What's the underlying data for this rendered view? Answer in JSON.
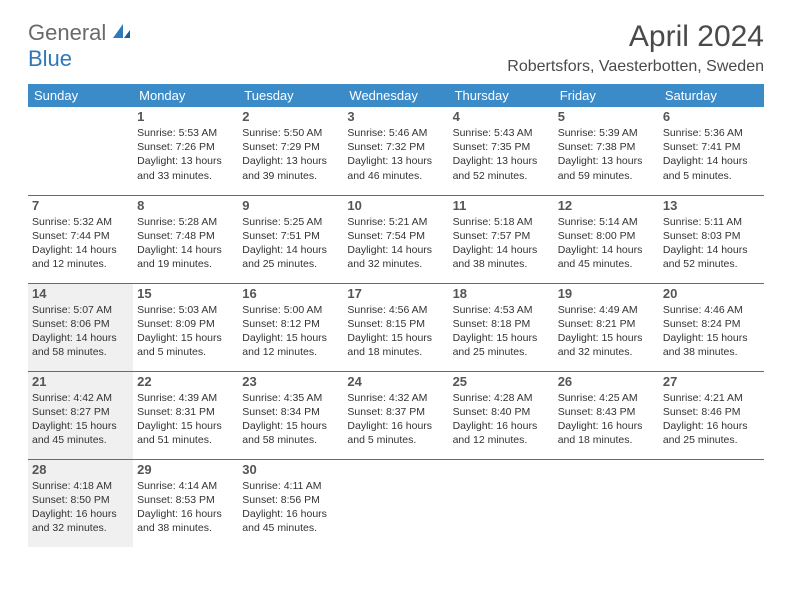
{
  "logo": {
    "gen": "General",
    "blue": "Blue"
  },
  "title": "April 2024",
  "location": "Robertsfors, Vaesterbotten, Sweden",
  "colors": {
    "header_bg": "#3b8bc8",
    "header_fg": "#ffffff",
    "border": "#2f78bd",
    "shade": "#f0f0f0",
    "logo_blue": "#2f78bd",
    "logo_gray": "#6a6a6a"
  },
  "weekdays": [
    "Sunday",
    "Monday",
    "Tuesday",
    "Wednesday",
    "Thursday",
    "Friday",
    "Saturday"
  ],
  "weeks": [
    [
      {
        "day": "",
        "sunrise": "",
        "sunset": "",
        "daylight": ""
      },
      {
        "day": "1",
        "sunrise": "Sunrise: 5:53 AM",
        "sunset": "Sunset: 7:26 PM",
        "daylight": "Daylight: 13 hours and 33 minutes."
      },
      {
        "day": "2",
        "sunrise": "Sunrise: 5:50 AM",
        "sunset": "Sunset: 7:29 PM",
        "daylight": "Daylight: 13 hours and 39 minutes."
      },
      {
        "day": "3",
        "sunrise": "Sunrise: 5:46 AM",
        "sunset": "Sunset: 7:32 PM",
        "daylight": "Daylight: 13 hours and 46 minutes."
      },
      {
        "day": "4",
        "sunrise": "Sunrise: 5:43 AM",
        "sunset": "Sunset: 7:35 PM",
        "daylight": "Daylight: 13 hours and 52 minutes."
      },
      {
        "day": "5",
        "sunrise": "Sunrise: 5:39 AM",
        "sunset": "Sunset: 7:38 PM",
        "daylight": "Daylight: 13 hours and 59 minutes."
      },
      {
        "day": "6",
        "sunrise": "Sunrise: 5:36 AM",
        "sunset": "Sunset: 7:41 PM",
        "daylight": "Daylight: 14 hours and 5 minutes."
      }
    ],
    [
      {
        "day": "7",
        "sunrise": "Sunrise: 5:32 AM",
        "sunset": "Sunset: 7:44 PM",
        "daylight": "Daylight: 14 hours and 12 minutes."
      },
      {
        "day": "8",
        "sunrise": "Sunrise: 5:28 AM",
        "sunset": "Sunset: 7:48 PM",
        "daylight": "Daylight: 14 hours and 19 minutes."
      },
      {
        "day": "9",
        "sunrise": "Sunrise: 5:25 AM",
        "sunset": "Sunset: 7:51 PM",
        "daylight": "Daylight: 14 hours and 25 minutes."
      },
      {
        "day": "10",
        "sunrise": "Sunrise: 5:21 AM",
        "sunset": "Sunset: 7:54 PM",
        "daylight": "Daylight: 14 hours and 32 minutes."
      },
      {
        "day": "11",
        "sunrise": "Sunrise: 5:18 AM",
        "sunset": "Sunset: 7:57 PM",
        "daylight": "Daylight: 14 hours and 38 minutes."
      },
      {
        "day": "12",
        "sunrise": "Sunrise: 5:14 AM",
        "sunset": "Sunset: 8:00 PM",
        "daylight": "Daylight: 14 hours and 45 minutes."
      },
      {
        "day": "13",
        "sunrise": "Sunrise: 5:11 AM",
        "sunset": "Sunset: 8:03 PM",
        "daylight": "Daylight: 14 hours and 52 minutes."
      }
    ],
    [
      {
        "day": "14",
        "sunrise": "Sunrise: 5:07 AM",
        "sunset": "Sunset: 8:06 PM",
        "daylight": "Daylight: 14 hours and 58 minutes.",
        "shade": true
      },
      {
        "day": "15",
        "sunrise": "Sunrise: 5:03 AM",
        "sunset": "Sunset: 8:09 PM",
        "daylight": "Daylight: 15 hours and 5 minutes."
      },
      {
        "day": "16",
        "sunrise": "Sunrise: 5:00 AM",
        "sunset": "Sunset: 8:12 PM",
        "daylight": "Daylight: 15 hours and 12 minutes."
      },
      {
        "day": "17",
        "sunrise": "Sunrise: 4:56 AM",
        "sunset": "Sunset: 8:15 PM",
        "daylight": "Daylight: 15 hours and 18 minutes."
      },
      {
        "day": "18",
        "sunrise": "Sunrise: 4:53 AM",
        "sunset": "Sunset: 8:18 PM",
        "daylight": "Daylight: 15 hours and 25 minutes."
      },
      {
        "day": "19",
        "sunrise": "Sunrise: 4:49 AM",
        "sunset": "Sunset: 8:21 PM",
        "daylight": "Daylight: 15 hours and 32 minutes."
      },
      {
        "day": "20",
        "sunrise": "Sunrise: 4:46 AM",
        "sunset": "Sunset: 8:24 PM",
        "daylight": "Daylight: 15 hours and 38 minutes."
      }
    ],
    [
      {
        "day": "21",
        "sunrise": "Sunrise: 4:42 AM",
        "sunset": "Sunset: 8:27 PM",
        "daylight": "Daylight: 15 hours and 45 minutes.",
        "shade": true
      },
      {
        "day": "22",
        "sunrise": "Sunrise: 4:39 AM",
        "sunset": "Sunset: 8:31 PM",
        "daylight": "Daylight: 15 hours and 51 minutes."
      },
      {
        "day": "23",
        "sunrise": "Sunrise: 4:35 AM",
        "sunset": "Sunset: 8:34 PM",
        "daylight": "Daylight: 15 hours and 58 minutes."
      },
      {
        "day": "24",
        "sunrise": "Sunrise: 4:32 AM",
        "sunset": "Sunset: 8:37 PM",
        "daylight": "Daylight: 16 hours and 5 minutes."
      },
      {
        "day": "25",
        "sunrise": "Sunrise: 4:28 AM",
        "sunset": "Sunset: 8:40 PM",
        "daylight": "Daylight: 16 hours and 12 minutes."
      },
      {
        "day": "26",
        "sunrise": "Sunrise: 4:25 AM",
        "sunset": "Sunset: 8:43 PM",
        "daylight": "Daylight: 16 hours and 18 minutes."
      },
      {
        "day": "27",
        "sunrise": "Sunrise: 4:21 AM",
        "sunset": "Sunset: 8:46 PM",
        "daylight": "Daylight: 16 hours and 25 minutes."
      }
    ],
    [
      {
        "day": "28",
        "sunrise": "Sunrise: 4:18 AM",
        "sunset": "Sunset: 8:50 PM",
        "daylight": "Daylight: 16 hours and 32 minutes.",
        "shade": true
      },
      {
        "day": "29",
        "sunrise": "Sunrise: 4:14 AM",
        "sunset": "Sunset: 8:53 PM",
        "daylight": "Daylight: 16 hours and 38 minutes."
      },
      {
        "day": "30",
        "sunrise": "Sunrise: 4:11 AM",
        "sunset": "Sunset: 8:56 PM",
        "daylight": "Daylight: 16 hours and 45 minutes."
      },
      {
        "day": "",
        "sunrise": "",
        "sunset": "",
        "daylight": ""
      },
      {
        "day": "",
        "sunrise": "",
        "sunset": "",
        "daylight": ""
      },
      {
        "day": "",
        "sunrise": "",
        "sunset": "",
        "daylight": ""
      },
      {
        "day": "",
        "sunrise": "",
        "sunset": "",
        "daylight": ""
      }
    ]
  ]
}
